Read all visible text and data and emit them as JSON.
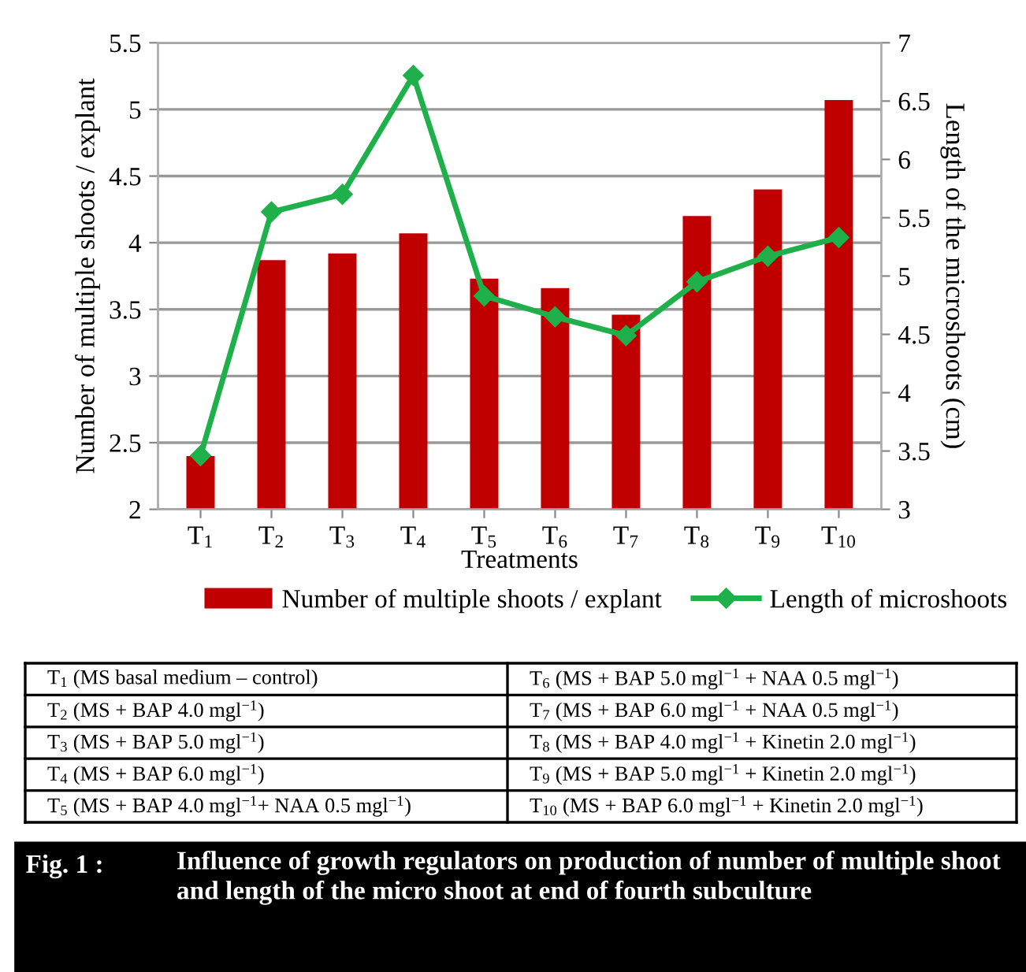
{
  "chart_data": {
    "type": "bar",
    "title": "Fig. 1 :",
    "subtitle": "Influence of growth regulators on production of number of multiple shoot and length of the micro shoot at end of fourth subculture",
    "xlabel": "Treatments",
    "ylabel": "Number of multiple shoots / explant",
    "y2label": "Length of the microshoots (cm)",
    "categories": [
      "T$_{1}$",
      "T$_{2}$",
      "T$_{3}$",
      "T$_{4}$",
      "T$_{5}$",
      "T$_{6}$",
      "T$_{7}$",
      "T$_{8}$",
      "T$_{9}$",
      "T$_{10}$"
    ],
    "series": [
      {
        "name": "Number of multiple shoots / explant",
        "type": "bar",
        "color": "#c00000",
        "values": [
          2.4,
          3.87,
          3.92,
          4.07,
          3.73,
          3.66,
          3.46,
          4.2,
          4.4,
          5.07
        ]
      },
      {
        "name": "Length of microshoots",
        "type": "line",
        "axis": "y2",
        "color": "#1fb04b",
        "marker": "diamond",
        "line_style": "solid",
        "values": [
          3.46,
          5.55,
          5.7,
          6.72,
          4.83,
          4.65,
          4.49,
          4.95,
          5.17,
          5.33
        ]
      }
    ],
    "ylim": [
      2,
      5.5
    ],
    "yticks": [
      2,
      2.5,
      3,
      3.5,
      4,
      4.5,
      5,
      5.5
    ],
    "y2lim": [
      3,
      7
    ],
    "y2ticks": [
      3,
      3.5,
      4,
      4.5,
      5,
      5.5,
      6,
      6.5,
      7
    ],
    "grid": "y",
    "legend": "bottom",
    "annotations": [
      "T$_{1}$ (MS basal medium – control)",
      "T$_{2}$ (MS + BAP 4.0 mgl$^{−1}$)",
      "T$_{3}$ (MS + BAP 5.0 mgl$^{−1}$)",
      "T$_{4}$ (MS + BAP 6.0 mgl$^{−1}$)",
      "T$_{5}$ (MS + BAP 4.0 mgl$^{−1}$+ NAA 0.5 mgl$^{−1}$)",
      "T$_{6}$ (MS + BAP 5.0 mgl$^{−1}$ + NAA 0.5 mgl$^{−1}$)",
      "T$_{7}$ (MS + BAP 6.0 mgl$^{−1}$ + NAA 0.5 mgl$^{−1}$)",
      "T$_{8}$ (MS + BAP 4.0 mgl$^{−1}$ + Kinetin 2.0 mgl$^{−1}$)",
      "T$_{9}$ (MS + BAP 5.0 mgl$^{−1}$ + Kinetin 2.0 mgl$^{−1}$)",
      "T$_{10}$ (MS + BAP 6.0 mgl$^{−1}$ + Kinetin 2.0 mgl$^{−1}$)"
    ]
  }
}
